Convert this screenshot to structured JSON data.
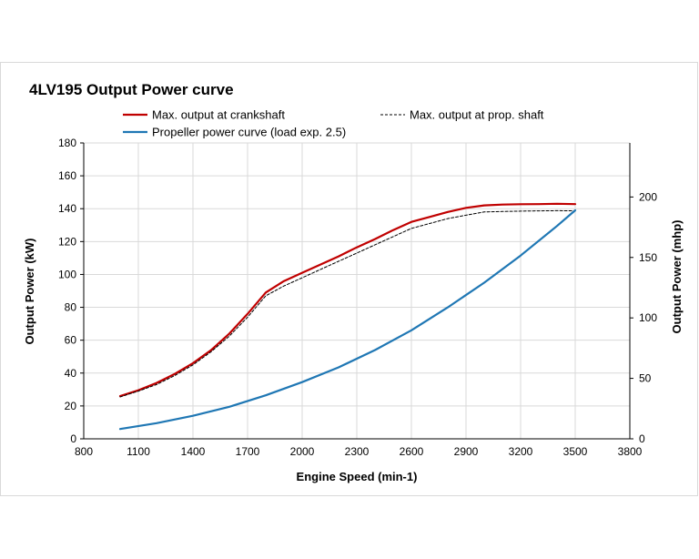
{
  "chart_data": {
    "type": "line",
    "title": "4LV195 Output Power curve",
    "xlabel": "Engine Speed (min-1)",
    "ylabel": "Output Power (kW)",
    "y2label": "Output Power (mhp)",
    "xlim": [
      800,
      3800
    ],
    "ylim": [
      0,
      180
    ],
    "y2lim": [
      0,
      244.7
    ],
    "xticks": [
      800,
      1100,
      1400,
      1700,
      2000,
      2300,
      2600,
      2900,
      3200,
      3500,
      3800
    ],
    "yticks": [
      0,
      20,
      40,
      60,
      80,
      100,
      120,
      140,
      160,
      180
    ],
    "y2ticks": [
      0,
      50,
      100,
      150,
      200
    ],
    "grid": true,
    "legend_position": "top",
    "series": [
      {
        "name": "Max. output at crankshaft",
        "color": "#c00000",
        "style": "solid",
        "x": [
          1000,
          1100,
          1200,
          1300,
          1400,
          1500,
          1600,
          1700,
          1800,
          1900,
          2000,
          2100,
          2200,
          2300,
          2400,
          2500,
          2600,
          2700,
          2800,
          2900,
          3000,
          3100,
          3200,
          3300,
          3400,
          3500
        ],
        "y": [
          26,
          29.5,
          34,
          39.5,
          46,
          54,
          64,
          76,
          89,
          96,
          101,
          106,
          111,
          116.5,
          121.5,
          127,
          132,
          135,
          138,
          140.5,
          142,
          142.5,
          142.7,
          142.8,
          143,
          142.8
        ]
      },
      {
        "name": "Max. output at prop. shaft",
        "color": "#000000",
        "style": "dashed",
        "x": [
          1000,
          1100,
          1200,
          1300,
          1400,
          1500,
          1600,
          1700,
          1800,
          1900,
          2000,
          2100,
          2200,
          2300,
          2400,
          2500,
          2600,
          2700,
          2800,
          2900,
          3000,
          3100,
          3200,
          3300,
          3400,
          3500
        ],
        "y": [
          25.5,
          29,
          33,
          38.5,
          45,
          53,
          62.5,
          74,
          87,
          93,
          98,
          103,
          108,
          113,
          118,
          123,
          128,
          131,
          134,
          136,
          138,
          138.3,
          138.5,
          138.7,
          138.8,
          138.7
        ]
      },
      {
        "name": "Propeller power curve (load exp. 2.5)",
        "color": "#1f77b4",
        "style": "solid",
        "x": [
          1000,
          1200,
          1400,
          1600,
          1800,
          2000,
          2200,
          2400,
          2600,
          2800,
          3000,
          3200,
          3400,
          3500
        ],
        "y": [
          6,
          9.5,
          14,
          19.5,
          26.5,
          34.5,
          43.5,
          54,
          66,
          80,
          95,
          111.5,
          129.5,
          139
        ]
      }
    ]
  }
}
